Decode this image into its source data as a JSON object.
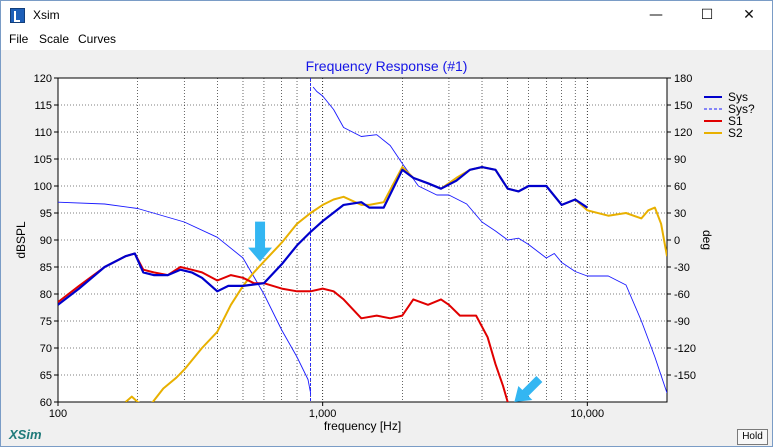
{
  "window": {
    "title": "Xsim",
    "controls": {
      "minimize": "—",
      "maximize": "☐",
      "close": "✕"
    }
  },
  "menu": [
    "File",
    "Scale",
    "Curves"
  ],
  "brand": "XSim",
  "hold_label": "Hold",
  "colors": {
    "sys": "#0000cc",
    "s1": "#e00000",
    "s2": "#e8b000",
    "phase": "#1a1aff",
    "title": "#1515e6",
    "arrow": "#33b6f2"
  },
  "chart_data": {
    "type": "line",
    "title": "Frequency Response (#1)",
    "xlabel": "frequency [Hz]",
    "ylabel": "dBSPL",
    "y2label": "deg",
    "xscale": "log",
    "xlim": [
      100,
      20000
    ],
    "ylim": [
      60,
      120
    ],
    "y2lim": [
      -180,
      180
    ],
    "grid": true,
    "legend_position": "right",
    "xticks": [
      {
        "value": 100,
        "label": "100"
      },
      {
        "value": 1000,
        "label": "1,000"
      },
      {
        "value": 10000,
        "label": "10,000"
      }
    ],
    "yticks": [
      60,
      65,
      70,
      75,
      80,
      85,
      90,
      95,
      100,
      105,
      110,
      115,
      120
    ],
    "y2ticks": [
      {
        "value": 180,
        "label": "180"
      },
      {
        "value": 150,
        "label": "150"
      },
      {
        "value": 120,
        "label": "120"
      },
      {
        "value": 90,
        "label": "90"
      },
      {
        "value": 60,
        "label": "60"
      },
      {
        "value": 30,
        "label": "30"
      },
      {
        "value": 0,
        "label": "0"
      },
      {
        "value": -30,
        "label": "-30"
      },
      {
        "value": -60,
        "label": "-60"
      },
      {
        "value": -90,
        "label": "-90"
      },
      {
        "value": -120,
        "label": "-120"
      },
      {
        "value": -150,
        "label": "-150"
      }
    ],
    "series": [
      {
        "key": "sys",
        "name": "Sys",
        "axis": "left",
        "style": "solid",
        "x": [
          100,
          120,
          150,
          180,
          195,
          210,
          230,
          260,
          290,
          320,
          350,
          400,
          440,
          500,
          600,
          700,
          800,
          900,
          1000,
          1200,
          1400,
          1500,
          1700,
          2000,
          2200,
          2500,
          2800,
          3200,
          3600,
          4000,
          4500,
          5000,
          5500,
          6000,
          7000,
          8000,
          9000,
          10000
        ],
        "y": [
          78,
          81,
          85,
          87,
          87.5,
          84,
          83.5,
          83.5,
          84.5,
          84,
          83,
          80.5,
          81.5,
          81.5,
          82,
          85.5,
          89,
          91.5,
          93.5,
          96.5,
          97,
          96,
          96,
          103,
          101.5,
          100.5,
          99.5,
          101,
          103,
          103.5,
          103,
          99.5,
          99,
          100,
          100,
          96.5,
          97.5,
          96
        ]
      },
      {
        "key": "sys_phase",
        "name": "Sys?",
        "axis": "right",
        "style": "dashed",
        "x": [
          100,
          150,
          200,
          300,
          400,
          500,
          600,
          700,
          800,
          880,
          900,
          920,
          950,
          1000,
          1100,
          1200,
          1400,
          1600,
          1800,
          2000,
          2300,
          2700,
          3000,
          3500,
          4000,
          4500,
          5000,
          5500,
          6000,
          7000,
          7500,
          8000,
          9000,
          10000,
          12000,
          14000,
          16000,
          18000,
          20000
        ],
        "y": [
          42,
          40,
          35,
          20,
          3,
          -20,
          -60,
          -100,
          -130,
          -155,
          -170,
          170,
          165,
          160,
          145,
          125,
          115,
          117,
          105,
          85,
          60,
          50,
          50,
          40,
          20,
          10,
          0,
          2,
          -5,
          -20,
          -15,
          -25,
          -35,
          -40,
          -40,
          -50,
          -90,
          -130,
          -170
        ]
      },
      {
        "key": "s1",
        "name": "S1",
        "axis": "left",
        "style": "solid",
        "x": [
          100,
          120,
          150,
          180,
          195,
          210,
          230,
          260,
          290,
          320,
          350,
          400,
          450,
          500,
          550,
          600,
          700,
          800,
          900,
          1000,
          1100,
          1200,
          1400,
          1600,
          1800,
          2000,
          2200,
          2500,
          2800,
          3000,
          3300,
          3800,
          4200,
          4500,
          4800,
          5000,
          5100
        ],
        "y": [
          78.5,
          81.5,
          85,
          87,
          87.5,
          84.5,
          84,
          83.5,
          85,
          84.5,
          84,
          82.5,
          83.5,
          83,
          82,
          82,
          81,
          80.5,
          80.5,
          81,
          80.5,
          79,
          75.5,
          76,
          75.5,
          76,
          79,
          78,
          79,
          78,
          76,
          76,
          72,
          67,
          63,
          60,
          59
        ]
      },
      {
        "key": "s2",
        "name": "S2",
        "axis": "left",
        "style": "solid",
        "x": [
          180,
          190,
          200,
          220,
          250,
          280,
          300,
          350,
          400,
          450,
          500,
          550,
          600,
          700,
          800,
          900,
          1000,
          1100,
          1200,
          1400,
          1500,
          1700,
          2000,
          2200,
          2500,
          2800,
          3200,
          3600,
          4000,
          4500,
          5000,
          5500,
          6000,
          7000,
          8000,
          9000,
          10000,
          12000,
          14000,
          16000,
          17000,
          18000,
          19000,
          20000
        ],
        "y": [
          60,
          61,
          60,
          59,
          62.5,
          64.5,
          66,
          70,
          73,
          78,
          81.5,
          84,
          86,
          89.5,
          93,
          95,
          96.5,
          97.5,
          98,
          96.5,
          96.5,
          97,
          103.5,
          101.5,
          100.5,
          99.5,
          101.5,
          103,
          103.5,
          103,
          99.5,
          99,
          100,
          100,
          96.5,
          97.5,
          95.5,
          94.5,
          95,
          94,
          95.5,
          96,
          93,
          87
        ]
      }
    ],
    "annotations": [
      {
        "type": "arrow",
        "x": 580,
        "y": 86,
        "direction": "down"
      },
      {
        "type": "arrow",
        "x": 5300,
        "y": 60,
        "direction": "down-left"
      }
    ]
  }
}
